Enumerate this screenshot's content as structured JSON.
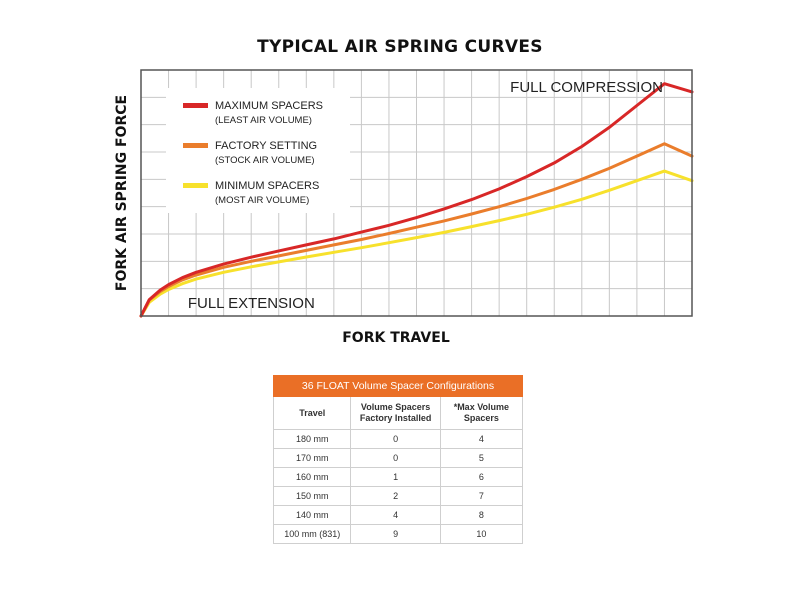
{
  "chart_data": {
    "type": "line",
    "title": "TYPICAL AIR SPRING CURVES",
    "xlabel": "FORK TRAVEL",
    "ylabel": "FORK AIR SPRING FORCE",
    "xlim": [
      0,
      20
    ],
    "ylim": [
      0,
      9
    ],
    "grid": true,
    "legend_position": "top-left",
    "annotations": [
      {
        "text": "FULL COMPRESSION",
        "x": 13.4,
        "y": 8.2
      },
      {
        "text": "FULL EXTENSION",
        "x": 1.7,
        "y": 0.3
      }
    ],
    "series": [
      {
        "name": "MAXIMUM SPACERS",
        "sublabel": "(LEAST AIR VOLUME)",
        "color": "#d82727",
        "x": [
          0,
          0.3,
          0.7,
          1,
          1.5,
          2,
          3,
          4,
          5,
          6,
          7,
          8,
          9,
          10,
          11,
          12,
          13,
          14,
          15,
          16,
          17,
          18,
          19,
          20
        ],
        "y": [
          0,
          0.6,
          0.95,
          1.15,
          1.4,
          1.6,
          1.9,
          2.15,
          2.38,
          2.6,
          2.82,
          3.07,
          3.32,
          3.6,
          3.92,
          4.26,
          4.65,
          5.1,
          5.6,
          6.2,
          6.9,
          7.7,
          8.5,
          8.2
        ]
      },
      {
        "name": "FACTORY SETTING",
        "sublabel": "(STOCK AIR VOLUME)",
        "color": "#ea7d2c",
        "x": [
          0,
          0.3,
          0.7,
          1,
          1.5,
          2,
          3,
          4,
          5,
          6,
          7,
          8,
          9,
          10,
          11,
          12,
          13,
          14,
          15,
          16,
          17,
          18,
          19,
          20
        ],
        "y": [
          0,
          0.58,
          0.9,
          1.08,
          1.32,
          1.5,
          1.78,
          2.0,
          2.2,
          2.4,
          2.6,
          2.8,
          3.02,
          3.25,
          3.48,
          3.73,
          4.0,
          4.3,
          4.63,
          5.0,
          5.4,
          5.85,
          6.3,
          5.85
        ]
      },
      {
        "name": "MINIMUM SPACERS",
        "sublabel": "(MOST AIR VOLUME)",
        "color": "#f7e12c",
        "x": [
          0,
          0.3,
          0.7,
          1,
          1.5,
          2,
          3,
          4,
          5,
          6,
          7,
          8,
          9,
          10,
          11,
          12,
          13,
          14,
          15,
          16,
          17,
          18,
          19,
          20
        ],
        "y": [
          0,
          0.5,
          0.8,
          0.97,
          1.18,
          1.35,
          1.6,
          1.8,
          1.98,
          2.16,
          2.33,
          2.5,
          2.68,
          2.87,
          3.06,
          3.27,
          3.49,
          3.72,
          3.98,
          4.27,
          4.6,
          4.95,
          5.3,
          4.95
        ]
      }
    ]
  },
  "table": {
    "caption": "36 FLOAT Volume Spacer Configurations",
    "headers": {
      "travel": "Travel",
      "factory": "Volume Spacers Factory Installed",
      "max": "*Max Volume Spacers"
    },
    "rows": [
      {
        "travel": "180 mm",
        "factory": "0",
        "max": "4"
      },
      {
        "travel": "170 mm",
        "factory": "0",
        "max": "5"
      },
      {
        "travel": "160 mm",
        "factory": "1",
        "max": "6"
      },
      {
        "travel": "150 mm",
        "factory": "2",
        "max": "7"
      },
      {
        "travel": "140 mm",
        "factory": "4",
        "max": "8"
      },
      {
        "travel": "100 mm (831)",
        "factory": "9",
        "max": "10"
      }
    ],
    "header_color": "#ea6f26"
  }
}
